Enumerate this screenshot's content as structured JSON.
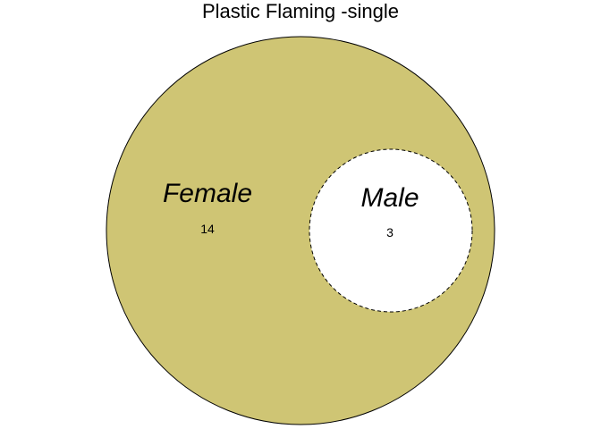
{
  "diagram": {
    "title": "Plastic Flaming -single",
    "sets": [
      {
        "key": "female",
        "label": "Female",
        "count": "14",
        "fill": "#cfc574",
        "border": "solid"
      },
      {
        "key": "male",
        "label": "Male",
        "count": "3",
        "fill": "#ffffff",
        "border": "dashed"
      }
    ],
    "colors": {
      "outer_fill": "#cfc574",
      "inner_fill": "#ffffff",
      "stroke": "#000000",
      "background": "#ffffff"
    }
  }
}
